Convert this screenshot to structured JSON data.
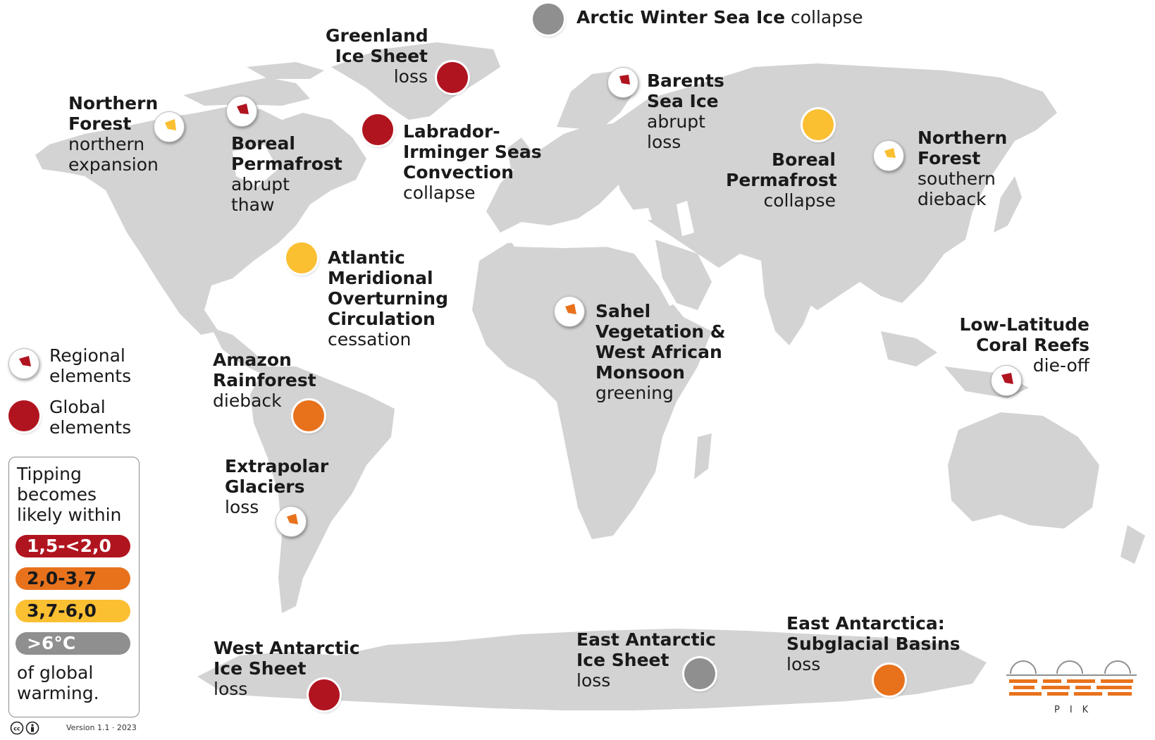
{
  "labels": {
    "arctic_winter": {
      "bold": "Arctic Winter Sea Ice",
      "normal": "collapse"
    },
    "greenland": {
      "bold": [
        "Greenland",
        "Ice Sheet"
      ],
      "normal": [
        "loss"
      ]
    },
    "northern_forest_na": {
      "bold": [
        "Northern",
        "Forest"
      ],
      "normal": [
        "northern",
        "expansion"
      ]
    },
    "boreal_permafrost_thaw": {
      "bold": [
        "Boreal",
        "Permafrost"
      ],
      "normal": [
        "abrupt",
        "thaw"
      ]
    },
    "labrador": {
      "bold": [
        "Labrador-",
        "Irminger Seas",
        "Convection"
      ],
      "normal": [
        "collapse"
      ]
    },
    "barents": {
      "bold": [
        "Barents",
        "Sea Ice"
      ],
      "normal": [
        "abrupt",
        "loss"
      ]
    },
    "boreal_permafrost_collapse": {
      "bold": [
        "Boreal",
        "Permafrost"
      ],
      "normal": [
        "collapse"
      ]
    },
    "northern_forest_asia": {
      "bold": [
        "Northern",
        "Forest"
      ],
      "normal": [
        "southern",
        "dieback"
      ]
    },
    "amoc": {
      "bold": [
        "Atlantic",
        "Meridional",
        "Overturning",
        "Circulation"
      ],
      "normal": [
        "cessation"
      ]
    },
    "sahel": {
      "bold": [
        "Sahel",
        "Vegetation &",
        "West African",
        "Monsoon"
      ],
      "normal": [
        "greening"
      ]
    },
    "coral": {
      "bold": [
        "Low-Latitude",
        "Coral Reefs"
      ],
      "normal": [
        "die-off"
      ]
    },
    "amazon": {
      "bold": [
        "Amazon",
        "Rainforest"
      ],
      "normal": [
        "dieback"
      ]
    },
    "glaciers": {
      "bold": [
        "Extrapolar",
        "Glaciers"
      ],
      "normal": [
        "loss"
      ]
    },
    "west_antarctic": {
      "bold": [
        "West Antarctic",
        "Ice Sheet"
      ],
      "normal": [
        "loss"
      ]
    },
    "east_antarctic": {
      "bold": [
        "East Antarctic",
        "Ice Sheet"
      ],
      "normal": [
        "loss"
      ]
    },
    "east_antarctica_basins": {
      "bold": [
        "East Antarctica:",
        "Subglacial Basins"
      ],
      "normal": [
        "loss"
      ]
    }
  },
  "legend": {
    "regional": [
      "Regional",
      "elements"
    ],
    "global": [
      "Global",
      "elements"
    ],
    "title": [
      "Tipping",
      "becomes",
      "likely within"
    ],
    "levels": [
      {
        "label": "1,5-<2,0",
        "color": "#b0141f",
        "text_color": "#ffffff"
      },
      {
        "label": "2,0-3,7",
        "color": "#e8721c",
        "text_color": "#1a1a1a"
      },
      {
        "label": "3,7-6,0",
        "color": "#fbbf32",
        "text_color": "#1a1a1a"
      },
      {
        "label": ">6°C",
        "color": "#8f8f8f",
        "text_color": "#ffffff"
      }
    ],
    "footer": [
      "of global",
      "warming."
    ]
  },
  "version": "Version 1.1 · 2023",
  "logo_text": "PIK",
  "colors": {
    "red": "#b0141f",
    "orange": "#e8721c",
    "yellow": "#fbbf32",
    "grey": "#8f8f8f",
    "land": "#d3d3d3"
  }
}
